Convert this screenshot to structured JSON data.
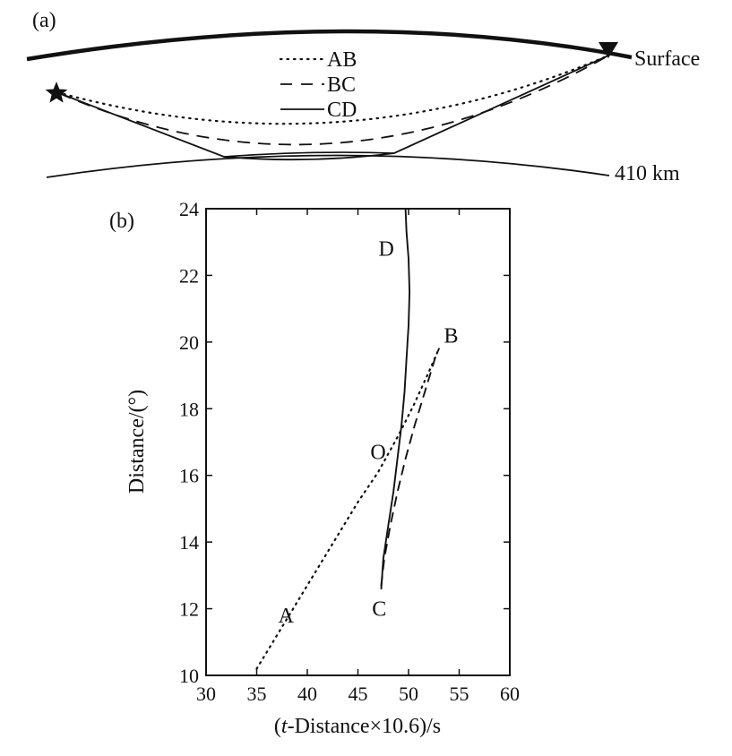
{
  "panel_a": {
    "label": "(a)",
    "legend": [
      "AB",
      "BC",
      "CD"
    ],
    "surface_label": "Surface",
    "discontinuity_label": "410 km"
  },
  "panel_b": {
    "label": "(b)"
  },
  "chart_data": {
    "type": "line",
    "xlabel_prefix": "(",
    "xlabel_italic": "t",
    "xlabel_suffix": "-Distance×10.6)/s",
    "ylabel": "Distance/(°)",
    "xlim": [
      30,
      60
    ],
    "ylim": [
      10,
      24
    ],
    "xticks": [
      "30",
      "35",
      "40",
      "45",
      "50",
      "55",
      "60"
    ],
    "yticks": [
      "10",
      "12",
      "14",
      "16",
      "18",
      "20",
      "22",
      "24"
    ],
    "series": [
      {
        "name": "AB",
        "style": "dotted",
        "points": [
          [
            35.0,
            10.2
          ],
          [
            37.0,
            11.2
          ],
          [
            39.0,
            12.2
          ],
          [
            41.0,
            13.2
          ],
          [
            43.0,
            14.2
          ],
          [
            45.0,
            15.2
          ],
          [
            47.0,
            16.1
          ],
          [
            49.0,
            17.2
          ],
          [
            50.5,
            18.1
          ],
          [
            52.0,
            19.1
          ],
          [
            53.0,
            19.8
          ]
        ]
      },
      {
        "name": "BC",
        "style": "dashed",
        "points": [
          [
            47.3,
            12.7
          ],
          [
            47.6,
            13.5
          ],
          [
            48.2,
            14.5
          ],
          [
            48.9,
            15.5
          ],
          [
            49.7,
            16.5
          ],
          [
            50.6,
            17.5
          ],
          [
            51.6,
            18.5
          ],
          [
            52.6,
            19.5
          ],
          [
            53.0,
            19.8
          ]
        ]
      },
      {
        "name": "CD",
        "style": "solid",
        "points": [
          [
            47.3,
            12.6
          ],
          [
            47.5,
            13.5
          ],
          [
            48.0,
            14.5
          ],
          [
            48.5,
            15.5
          ],
          [
            48.9,
            16.5
          ],
          [
            49.3,
            17.5
          ],
          [
            49.6,
            18.5
          ],
          [
            49.8,
            19.5
          ],
          [
            50.0,
            20.5
          ],
          [
            50.1,
            21.5
          ],
          [
            50.0,
            22.5
          ],
          [
            49.8,
            23.3
          ],
          [
            49.7,
            24.0
          ]
        ]
      }
    ],
    "annotations": [
      {
        "text": "A",
        "x": 37.9,
        "y": 11.8
      },
      {
        "text": "B",
        "x": 54.2,
        "y": 20.2
      },
      {
        "text": "C",
        "x": 47.1,
        "y": 12.0
      },
      {
        "text": "D",
        "x": 47.8,
        "y": 22.8
      },
      {
        "text": "O",
        "x": 47.0,
        "y": 16.7
      }
    ]
  }
}
